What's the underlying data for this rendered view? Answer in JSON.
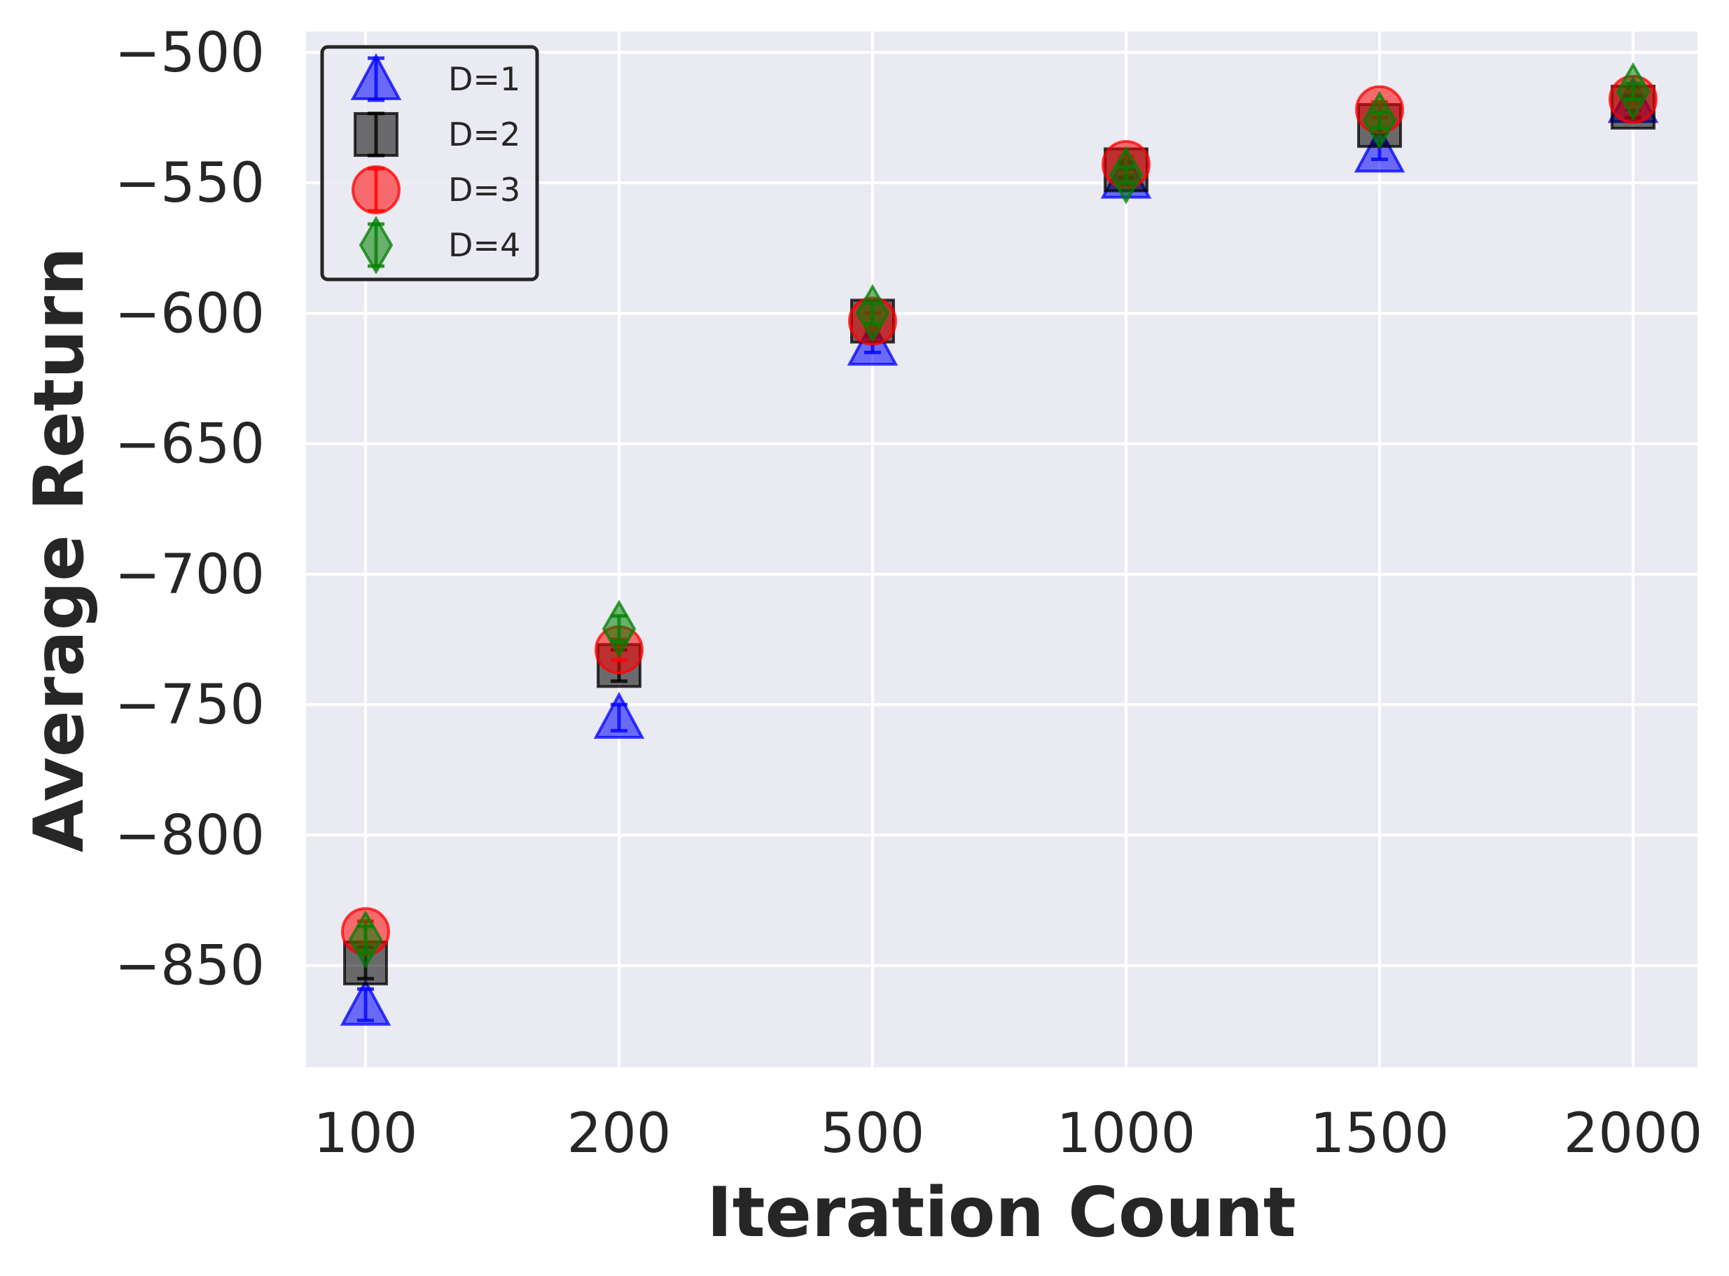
{
  "chart_data": {
    "type": "scatter",
    "title": "",
    "xlabel": "Iteration Count",
    "ylabel": "Average Return",
    "categories": [
      "100",
      "200",
      "500",
      "1000",
      "1500",
      "2000"
    ],
    "y_ticks": [
      -500,
      -550,
      -600,
      -650,
      -700,
      -750,
      -800,
      -850
    ],
    "y_tick_labels": [
      "−500",
      "−550",
      "−600",
      "−650",
      "−700",
      "−750",
      "−800",
      "−850"
    ],
    "ylim": [
      -889,
      -492
    ],
    "grid": true,
    "legend_position": "top-left",
    "series": [
      {
        "name": "D=1",
        "marker": "triangle",
        "color": "#0000ff",
        "values": [
          -865,
          -755,
          -612,
          -548,
          -538,
          -519
        ],
        "errors": [
          6,
          5,
          3,
          3,
          3,
          3
        ]
      },
      {
        "name": "D=2",
        "marker": "square",
        "color": "#000000",
        "values": [
          -849,
          -735,
          -603,
          -545,
          -528,
          -521
        ],
        "errors": [
          6,
          6,
          3,
          3,
          3,
          4
        ]
      },
      {
        "name": "D=3",
        "marker": "circle",
        "color": "#ff0000",
        "values": [
          -837,
          -729,
          -603,
          -543,
          -522,
          -518
        ],
        "errors": [
          4,
          4,
          3,
          3,
          3,
          3
        ]
      },
      {
        "name": "D=4",
        "marker": "diamond",
        "color": "#008000",
        "values": [
          -840,
          -721,
          -600,
          -547,
          -526,
          -515
        ],
        "errors": [
          5,
          5,
          4,
          3,
          3,
          3
        ]
      }
    ]
  }
}
